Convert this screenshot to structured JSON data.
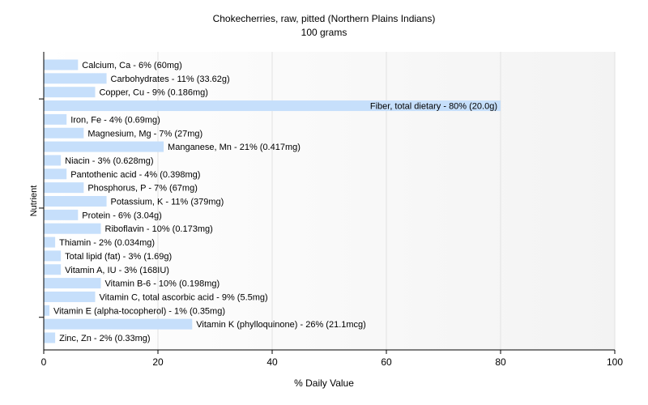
{
  "chart_data": {
    "type": "bar",
    "orientation": "horizontal",
    "title": "Chokecherries, raw, pitted (Northern Plains Indians)",
    "subtitle": "100 grams",
    "xlabel": "% Daily Value",
    "ylabel": "Nutrient",
    "xlim": [
      0,
      100
    ],
    "x_ticks": [
      "0",
      "20",
      "40",
      "60",
      "80",
      "100"
    ],
    "grid": "vertical",
    "bar_color": "#c6dffb",
    "categories": [
      "Calcium, Ca",
      "Carbohydrates",
      "Copper, Cu",
      "Fiber, total dietary",
      "Iron, Fe",
      "Magnesium, Mg",
      "Manganese, Mn",
      "Niacin",
      "Pantothenic acid",
      "Phosphorus, P",
      "Potassium, K",
      "Protein",
      "Riboflavin",
      "Thiamin",
      "Total lipid (fat)",
      "Vitamin A, IU",
      "Vitamin B-6",
      "Vitamin C, total ascorbic acid",
      "Vitamin E (alpha-tocopherol)",
      "Vitamin K (phylloquinone)",
      "Zinc, Zn"
    ],
    "values": [
      6,
      11,
      9,
      80,
      4,
      7,
      21,
      3,
      4,
      7,
      11,
      6,
      10,
      2,
      3,
      3,
      10,
      9,
      1,
      26,
      2
    ],
    "data_labels": [
      "Calcium, Ca - 6% (60mg)",
      "Carbohydrates - 11% (33.62g)",
      "Copper, Cu - 9% (0.186mg)",
      "Fiber, total dietary - 80% (20.0g)",
      "Iron, Fe - 4% (0.69mg)",
      "Magnesium, Mg - 7% (27mg)",
      "Manganese, Mn - 21% (0.417mg)",
      "Niacin - 3% (0.628mg)",
      "Pantothenic acid - 4% (0.398mg)",
      "Phosphorus, P - 7% (67mg)",
      "Potassium, K - 11% (379mg)",
      "Protein - 6% (3.04g)",
      "Riboflavin - 10% (0.173mg)",
      "Thiamin - 2% (0.034mg)",
      "Total lipid (fat) - 3% (1.69g)",
      "Vitamin A, IU - 3% (168IU)",
      "Vitamin B-6 - 10% (0.198mg)",
      "Vitamin C, total ascorbic acid - 9% (5.5mg)",
      "Vitamin E (alpha-tocopherol) - 1% (0.35mg)",
      "Vitamin K (phylloquinone) - 26% (21.1mcg)",
      "Zinc, Zn - 2% (0.33mg)"
    ]
  }
}
